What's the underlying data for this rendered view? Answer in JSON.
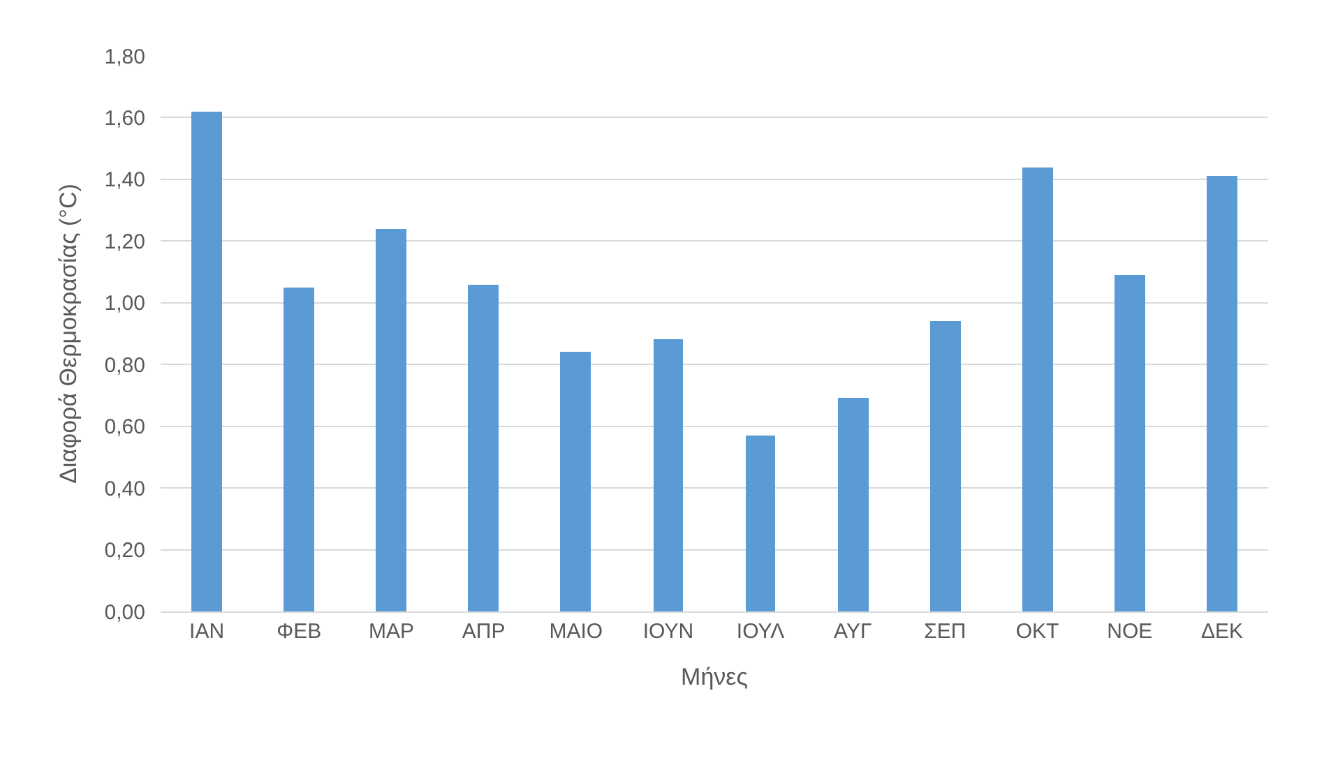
{
  "chart_data": {
    "type": "bar",
    "xlabel": "Μήνες",
    "ylabel": "Διαφορά Θερμοκρασίας (°C)",
    "categories": [
      "ΙΑΝ",
      "ΦΕΒ",
      "ΜΑΡ",
      "ΑΠΡ",
      "ΜΑΙΟ",
      "ΙΟΥΝ",
      "ΙΟΥΛ",
      "ΑΥΓ",
      "ΣΕΠ",
      "ΟΚΤ",
      "ΝΟΕ",
      "ΔΕΚ"
    ],
    "values": [
      1.62,
      1.05,
      1.24,
      1.06,
      0.84,
      0.88,
      0.57,
      0.69,
      0.94,
      1.44,
      1.09,
      1.41
    ],
    "color": "#5b9bd5",
    "ylim": [
      0,
      1.8
    ],
    "yticks": [
      {
        "value": 0,
        "label": "0,00"
      },
      {
        "value": 0.2,
        "label": "0,20"
      },
      {
        "value": 0.4,
        "label": "0,40"
      },
      {
        "value": 0.6,
        "label": "0,60"
      },
      {
        "value": 0.8,
        "label": "0,80"
      },
      {
        "value": 1,
        "label": "1,00"
      },
      {
        "value": 1.2,
        "label": "1,20"
      },
      {
        "value": 1.4,
        "label": "1,40"
      },
      {
        "value": 1.6,
        "label": "1,60"
      },
      {
        "value": 1.8,
        "label": "1,80"
      }
    ],
    "grid": "y"
  }
}
